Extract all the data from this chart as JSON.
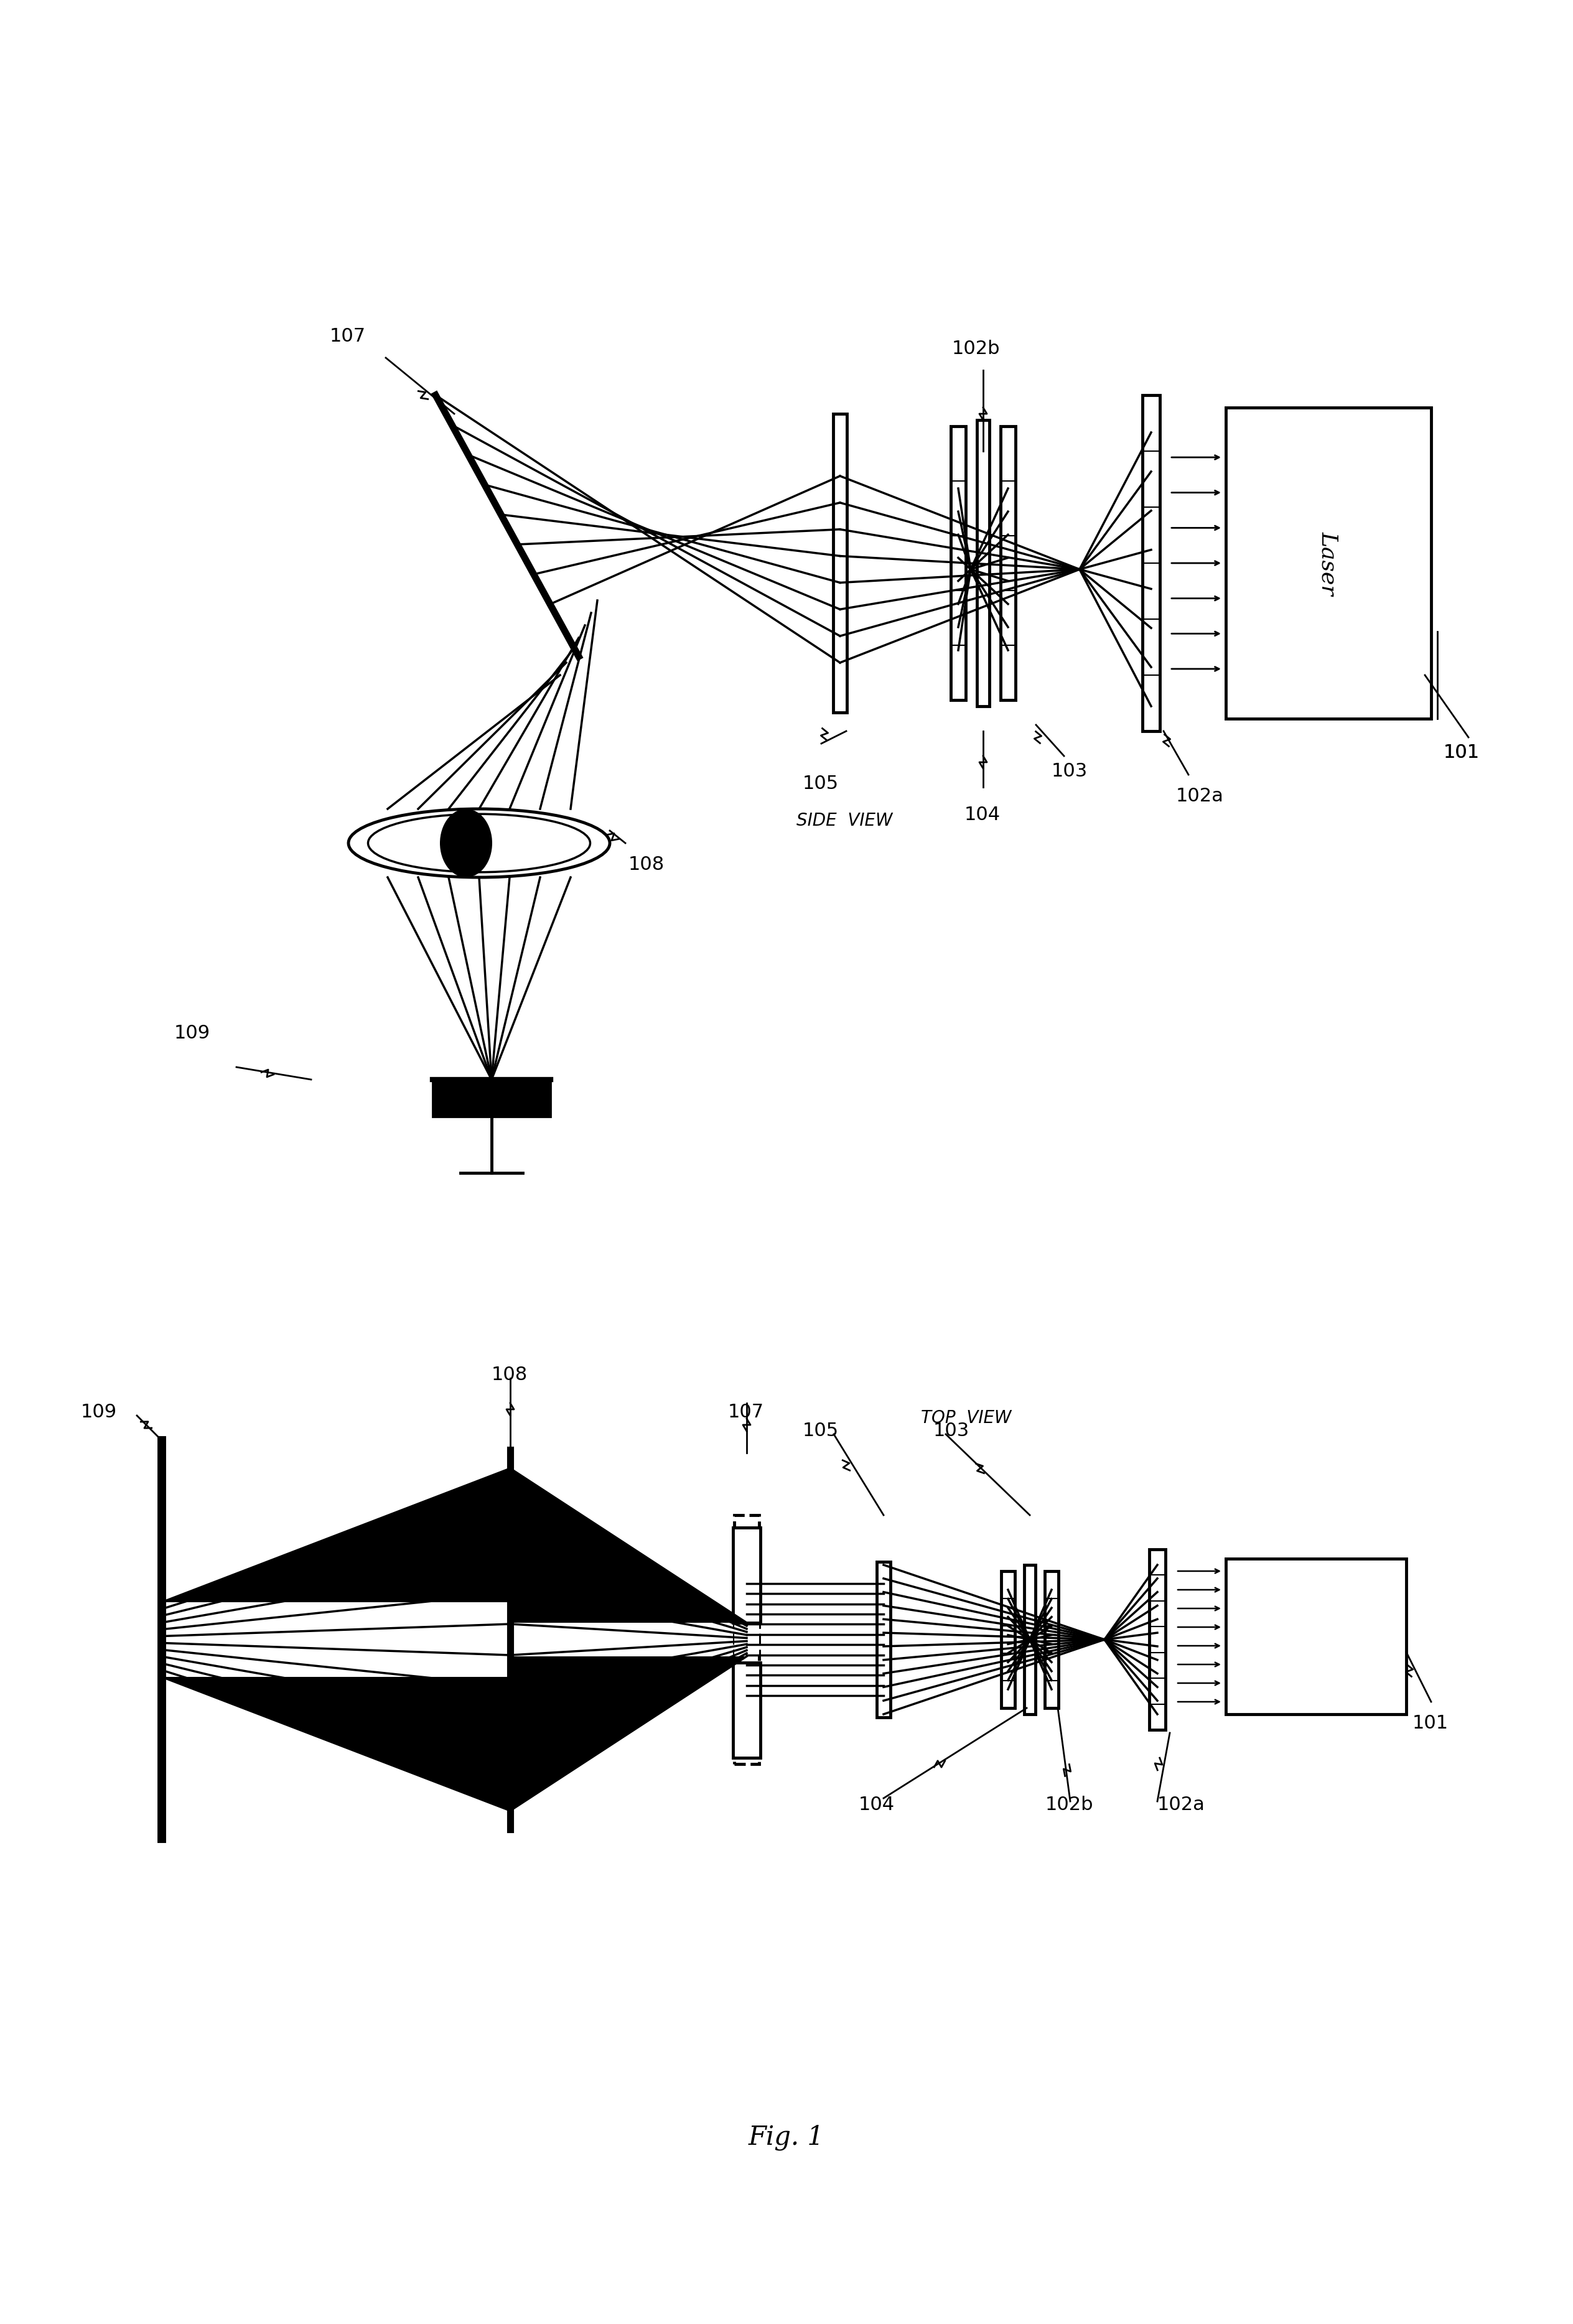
{
  "bg": "#ffffff",
  "lc": "#000000",
  "side_view_label": "SIDE  VIEW",
  "top_view_label": "TOP  VIEW",
  "fig_label": "Fig. 1",
  "laser_label": "Laser",
  "font_size_label": 22,
  "font_size_fig": 24
}
